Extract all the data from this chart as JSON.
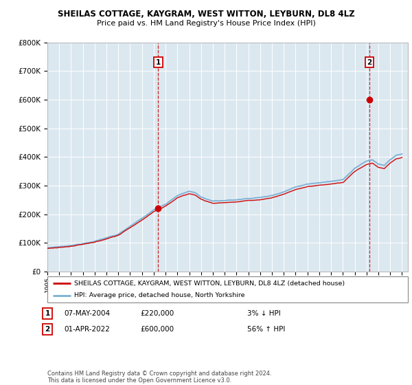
{
  "title": "SHEILAS COTTAGE, KAYGRAM, WEST WITTON, LEYBURN, DL8 4LZ",
  "subtitle": "Price paid vs. HM Land Registry's House Price Index (HPI)",
  "legend_line1": "SHEILAS COTTAGE, KAYGRAM, WEST WITTON, LEYBURN, DL8 4LZ (detached house)",
  "legend_line2": "HPI: Average price, detached house, North Yorkshire",
  "sale1_date": "07-MAY-2004",
  "sale1_price": 220000,
  "sale1_year": 2004.37,
  "sale1_label": "1",
  "sale1_pct": "3%",
  "sale1_dir": "↓",
  "sale2_date": "01-APR-2022",
  "sale2_price": 600000,
  "sale2_year": 2022.25,
  "sale2_label": "2",
  "sale2_pct": "56%",
  "sale2_dir": "↑",
  "footer1": "Contains HM Land Registry data © Crown copyright and database right 2024.",
  "footer2": "This data is licensed under the Open Government Licence v3.0.",
  "ylim_max": 800000,
  "xlim_min": 1995,
  "xlim_max": 2025.5,
  "hpi_color": "#7ab0d4",
  "price_color": "#cc0000",
  "plot_bg": "#dce8f0",
  "grid_color": "#ffffff"
}
